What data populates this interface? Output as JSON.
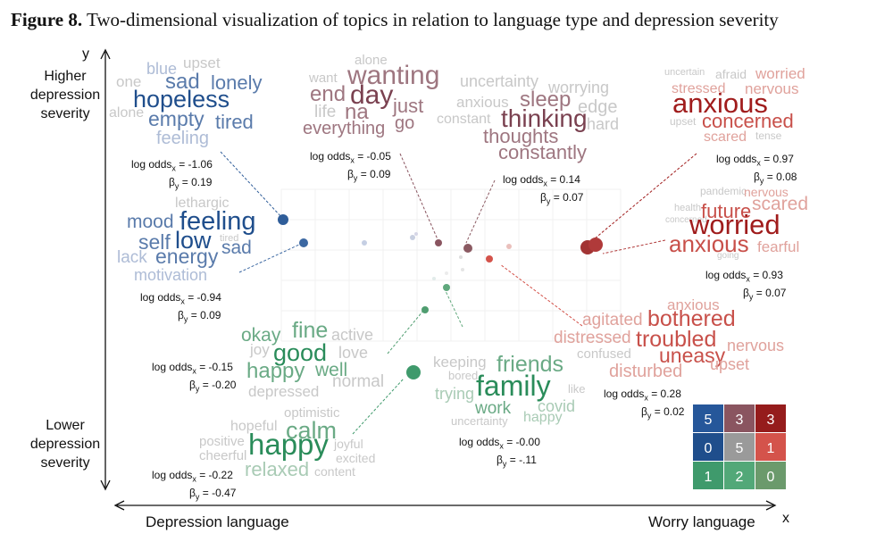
{
  "caption": {
    "label": "Figure 8.",
    "text": " Two-dimensional visualization of topics in relation to language type and depression severity"
  },
  "axes": {
    "y_letter": "y",
    "x_letter": "x",
    "y_top": [
      "Higher",
      "depression",
      "severity"
    ],
    "y_bottom": [
      "Lower",
      "depression",
      "severity"
    ],
    "x_left": "Depression language",
    "x_right": "Worry language"
  },
  "colors": {
    "blue_dark": "#1f4e8c",
    "blue_mid": "#5a7bab",
    "blue_light": "#aebcd6",
    "mauve_dark": "#7a4150",
    "mauve_mid": "#9e7680",
    "grey_light": "#c8c8c8",
    "red_dark": "#a01c1c",
    "red_mid": "#c8504a",
    "red_light": "#e0a29c",
    "green_dark": "#2a8c5a",
    "green_mid": "#6aaa85",
    "green_light": "#a9cbb5"
  },
  "stats": [
    {
      "x": "log odds",
      "xv": " = -1.06",
      "b": "β",
      "bv": " = 0.19"
    },
    {
      "x": "log odds",
      "xv": " = -0.05",
      "b": "β",
      "bv": " = 0.09"
    },
    {
      "x": "log odds",
      "xv": " = 0.14",
      "b": "β",
      "bv": " = 0.07"
    },
    {
      "x": "log odds",
      "xv": " = 0.97",
      "b": "β",
      "bv": " = 0.08"
    },
    {
      "x": "log odds",
      "xv": " = -0.94",
      "b": "β",
      "bv": " = 0.09"
    },
    {
      "x": "log odds",
      "xv": " = 0.93",
      "b": "β",
      "bv": " = 0.07"
    },
    {
      "x": "log odds",
      "xv": " = -0.15",
      "b": "β",
      "bv": " = -0.20"
    },
    {
      "x": "log odds",
      "xv": " = 0.28",
      "b": "β",
      "bv": " = 0.02"
    },
    {
      "x": "log odds",
      "xv": " = -0.00",
      "b": "β",
      "bv": " = -.11"
    },
    {
      "x": "log odds",
      "xv": " = -0.22",
      "b": "β",
      "bv": " = -0.47"
    }
  ],
  "clouds": {
    "c1": [
      "blue",
      "upset",
      "one",
      "sad",
      "lonely",
      "hopeless",
      "alone",
      "empty",
      "tired",
      "feeling"
    ],
    "c2": [
      "alone",
      "want",
      "wanting",
      "end",
      "day",
      "just",
      "life",
      "na",
      "everything",
      "go"
    ],
    "c3": [
      "uncertainty",
      "anxious",
      "sleep",
      "worrying",
      "edge",
      "constant",
      "thinking",
      "hard",
      "thoughts",
      "constantly"
    ],
    "c4": [
      "uncertain",
      "afraid",
      "worried",
      "stressed",
      "nervous",
      "anxious",
      "upset",
      "concerned",
      "scared",
      "tense"
    ],
    "c5": [
      "lethargic",
      "mood",
      "feeling",
      "self",
      "low",
      "tired",
      "sad",
      "lack",
      "energy",
      "motivation"
    ],
    "c6": [
      "pandemic",
      "nervous",
      "health",
      "scared",
      "concerned",
      "future",
      "worried",
      "anxious",
      "fearful",
      "going"
    ],
    "c7": [
      "okay",
      "fine",
      "active",
      "joy",
      "good",
      "love",
      "happy",
      "well",
      "normal",
      "depressed"
    ],
    "c8": [
      "anxious",
      "agitated",
      "bothered",
      "distressed",
      "troubled",
      "nervous",
      "confused",
      "uneasy",
      "upset",
      "disturbed"
    ],
    "c9": [
      "keeping",
      "friends",
      "bored",
      "trying",
      "family",
      "like",
      "work",
      "covid",
      "uncertainty",
      "happy"
    ],
    "c10": [
      "optimistic",
      "hopeful",
      "calm",
      "positive",
      "happy",
      "joyful",
      "cheerful",
      "excited",
      "relaxed",
      "content"
    ]
  },
  "legend_grid": {
    "values": [
      "5",
      "3",
      "3",
      "0",
      "5",
      "1",
      "1",
      "2",
      "0"
    ],
    "colors": [
      "#26579a",
      "#8a5560",
      "#951c1c",
      "#1f4e8c",
      "#9a9a9a",
      "#d4534b",
      "#3f9a6c",
      "#52a878",
      "#6b9a6c"
    ]
  }
}
